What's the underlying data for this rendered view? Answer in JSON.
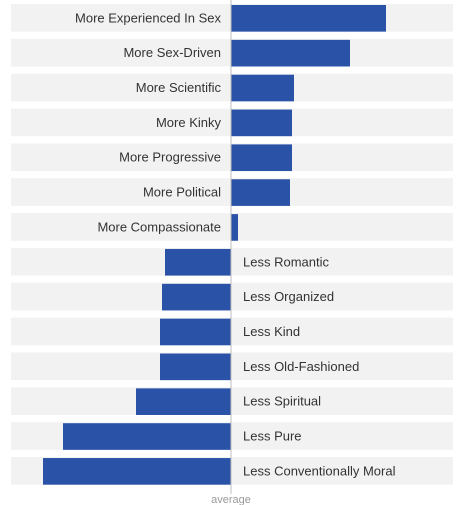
{
  "chart_data": {
    "type": "bar",
    "orientation": "horizontal",
    "baseline_label": "average",
    "categories": [
      "More Experienced In Sex",
      "More Sex-Driven",
      "More Scientific",
      "More Kinky",
      "More Progressive",
      "More Political",
      "More Compassionate",
      "Less Romantic",
      "Less Organized",
      "Less Kind",
      "Less Old-Fashioned",
      "Less Spiritual",
      "Less Pure",
      "Less Conventionally Moral"
    ],
    "values": [
      155,
      119,
      63,
      61,
      61,
      59,
      7,
      -66,
      -69,
      -71,
      -71,
      -95,
      -168,
      -188
    ],
    "xlim": [
      -231,
      237
    ],
    "bar_color": "#2a53a8",
    "row_color": "#f2f2f2"
  }
}
